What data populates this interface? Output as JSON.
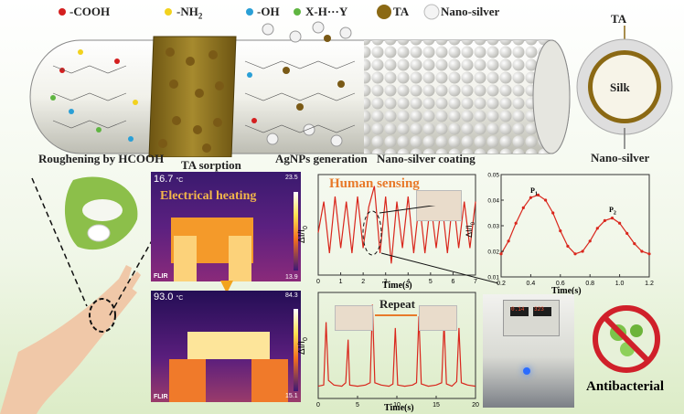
{
  "legend": {
    "items": [
      {
        "label": "-COOH",
        "color": "#d41f1f"
      },
      {
        "label": "-NH",
        "sub": "2",
        "color": "#f2d21e"
      },
      {
        "label": "-OH",
        "color": "#2a9fd6"
      },
      {
        "label": "X-H···Y",
        "color": "#5fb541"
      },
      {
        "label": "TA",
        "color": "#8b6914"
      },
      {
        "label": "Nano-silver",
        "color": "#f4f4f4"
      }
    ]
  },
  "process_labels": {
    "roughening": "Roughening by HCOOH",
    "ta_sorption": "TA sorption",
    "agnps": "AgNPs generation",
    "coating": "Nano-silver coating"
  },
  "cross_section": {
    "ta": "TA",
    "core": "Silk",
    "outer": "Nano-silver"
  },
  "thermal": {
    "title": "Electrical  heating",
    "top": {
      "reading": "16.7",
      "unit": "°C",
      "max": "23.5",
      "min": "13.9",
      "brand": "FLIR"
    },
    "bottom": {
      "reading": "93.0",
      "unit": "°C",
      "max": "84.3",
      "min": "15.1",
      "brand": "FLIR"
    }
  },
  "human_sensing": {
    "title": "Human sensing",
    "ylabel": "ΔI/I",
    "ylabel_sub": "0",
    "xlabel": "Time(s)"
  },
  "zoom_chart": {
    "ylabel": "ΔI/I",
    "ylabel_sub": "0",
    "xlabel": "Time(s)",
    "peak1": "P",
    "peak1_sub": "1",
    "peak2": "P",
    "peak2_sub": "2"
  },
  "repeat_chart": {
    "title": "Repeat",
    "ylabel": "ΔI/I",
    "ylabel_sub": "0",
    "xlabel": "Time(s)"
  },
  "power_supply": {
    "display_left": "0.14",
    "display_right": "323"
  },
  "antibacterial": "Antibacterial",
  "chart_data": [
    {
      "type": "line",
      "name": "human_sensing",
      "x_ticks": [
        "0",
        "1",
        "2",
        "3",
        "4",
        "5",
        "6",
        "7"
      ],
      "xlim": [
        0,
        7
      ],
      "ylabel": "ΔI/I0",
      "xlabel": "Time(s)",
      "x": [
        0,
        0.25,
        0.5,
        0.75,
        1,
        1.25,
        1.5,
        1.75,
        2,
        2.25,
        2.5,
        2.75,
        3,
        3.25,
        3.5,
        3.75,
        4,
        4.25,
        4.5,
        4.75,
        5,
        5.25,
        5.5,
        5.75,
        6,
        6.25,
        6.5,
        6.75,
        7
      ],
      "y": [
        0.5,
        0.8,
        0.3,
        0.85,
        0.35,
        0.8,
        0.3,
        0.85,
        0.35,
        0.75,
        0.95,
        0.3,
        0.85,
        0.2,
        0.8,
        0.35,
        0.85,
        0.3,
        0.8,
        0.3,
        0.8,
        0.35,
        0.8,
        0.3,
        0.85,
        0.35,
        0.8,
        0.35,
        0.8
      ]
    },
    {
      "type": "line",
      "name": "zoom",
      "x_ticks": [
        "0.2",
        "0.4",
        "0.6",
        "0.8",
        "1.0",
        "1.2"
      ],
      "y_ticks": [
        "0.01",
        "0.02",
        "0.03",
        "0.04",
        "0.05"
      ],
      "xlim": [
        0.2,
        1.2
      ],
      "ylim": [
        0.01,
        0.05
      ],
      "ylabel": "ΔI/I0",
      "xlabel": "Time(s)",
      "x": [
        0.2,
        0.25,
        0.3,
        0.35,
        0.4,
        0.45,
        0.5,
        0.55,
        0.6,
        0.65,
        0.7,
        0.75,
        0.8,
        0.85,
        0.9,
        0.95,
        1.0,
        1.05,
        1.1,
        1.15,
        1.2
      ],
      "y": [
        0.019,
        0.024,
        0.031,
        0.037,
        0.041,
        0.042,
        0.04,
        0.035,
        0.028,
        0.022,
        0.019,
        0.02,
        0.024,
        0.029,
        0.032,
        0.033,
        0.031,
        0.027,
        0.023,
        0.02,
        0.019
      ]
    },
    {
      "type": "line",
      "name": "repeat",
      "x_ticks": [
        "0",
        "5",
        "10",
        "15",
        "20"
      ],
      "xlim": [
        0,
        20
      ],
      "ylabel": "ΔI/I0",
      "xlabel": "Time(s)",
      "x": [
        0,
        0.7,
        1,
        1.3,
        2,
        3,
        3.5,
        3.8,
        4,
        5,
        6,
        6.6,
        6.9,
        7.2,
        8,
        9,
        9.5,
        9.8,
        10.1,
        11,
        12,
        12.5,
        12.8,
        13.1,
        14,
        15,
        15.7,
        16,
        16.3,
        17,
        17.6,
        17.9,
        18.2,
        19,
        20
      ],
      "y": [
        0.05,
        0.06,
        0.6,
        0.1,
        0.06,
        0.05,
        0.08,
        0.45,
        0.06,
        0.05,
        0.06,
        0.08,
        0.75,
        0.08,
        0.06,
        0.05,
        0.07,
        0.55,
        0.06,
        0.05,
        0.06,
        0.08,
        0.65,
        0.07,
        0.05,
        0.06,
        0.08,
        0.6,
        0.07,
        0.05,
        0.09,
        0.55,
        0.08,
        0.06,
        0.05
      ]
    }
  ]
}
